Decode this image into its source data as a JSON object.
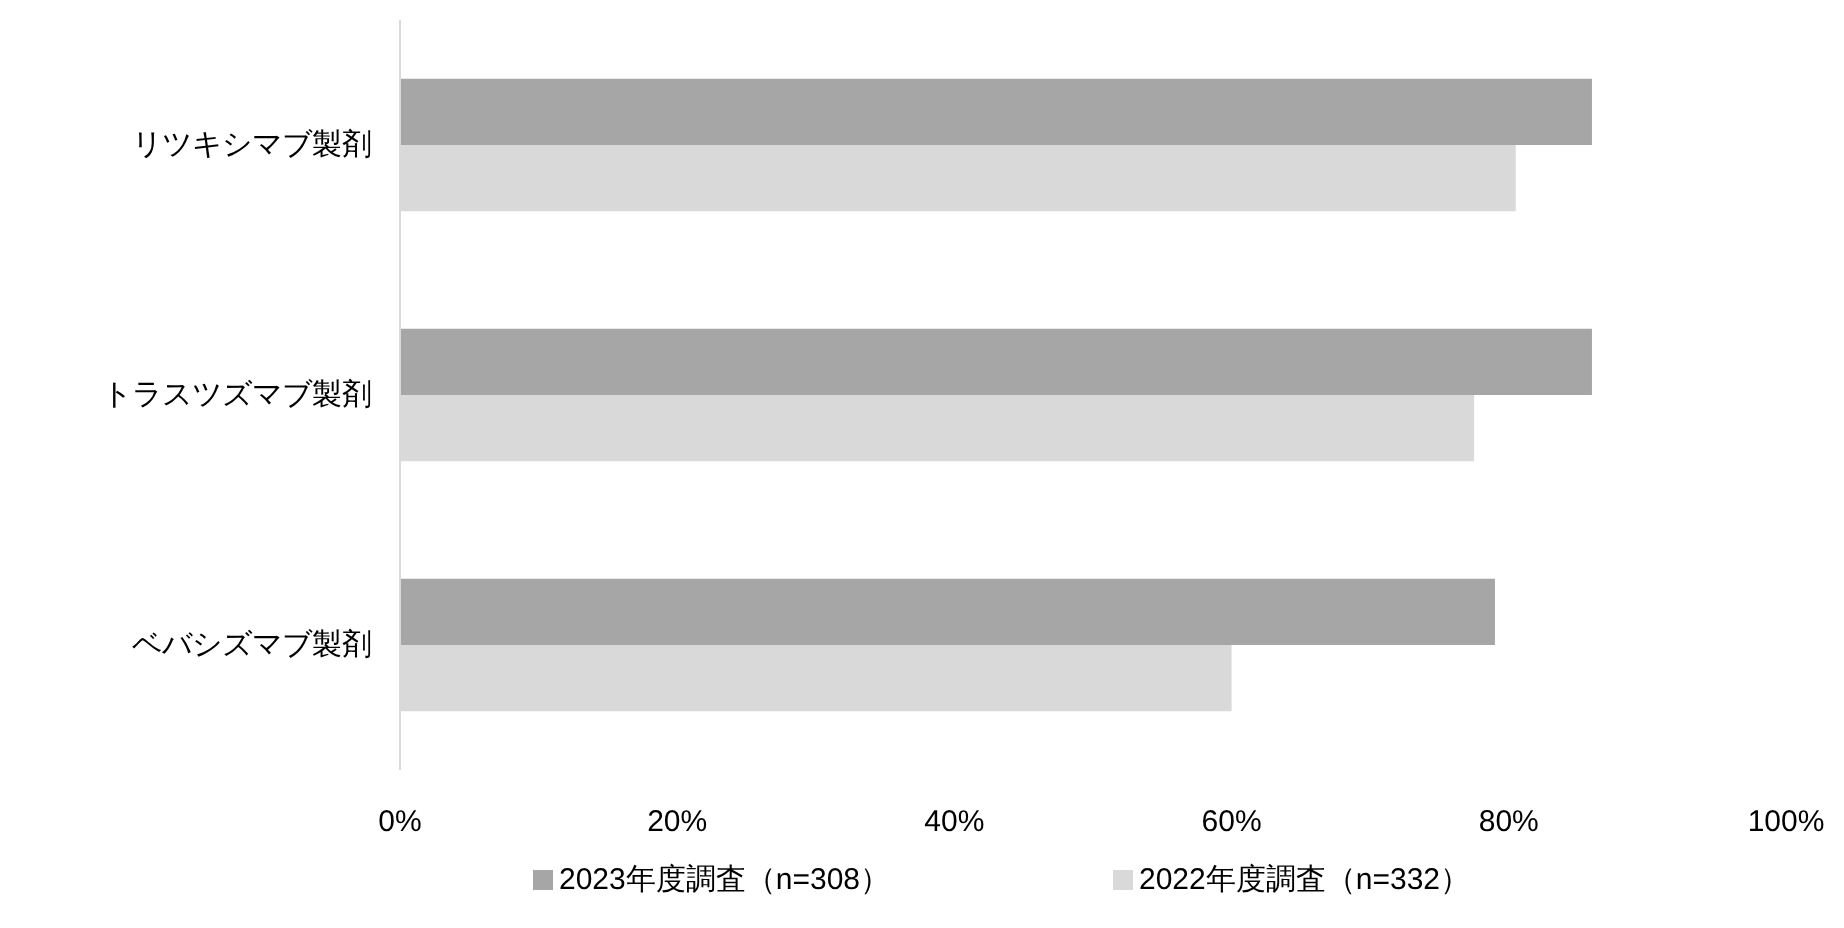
{
  "chart_data": {
    "type": "bar",
    "orientation": "horizontal",
    "categories": [
      "リツキシマブ製剤",
      "トラスツズマブ製剤",
      "ベバシズマブ製剤"
    ],
    "series": [
      {
        "name": "2023年度調査（n=308）",
        "color": "#a6a6a6",
        "values": [
          86,
          86,
          79
        ]
      },
      {
        "name": "2022年度調査（n=332）",
        "color": "#d9d9d9",
        "values": [
          80.5,
          77.5,
          60
        ]
      }
    ],
    "xlim": [
      0,
      100
    ],
    "xticks": [
      {
        "value": 0,
        "label": "0%"
      },
      {
        "value": 20,
        "label": "20%"
      },
      {
        "value": 40,
        "label": "40%"
      },
      {
        "value": 60,
        "label": "60%"
      },
      {
        "value": 80,
        "label": "80%"
      },
      {
        "value": 100,
        "label": "100%"
      }
    ],
    "grid": false,
    "legend": "bottom"
  }
}
